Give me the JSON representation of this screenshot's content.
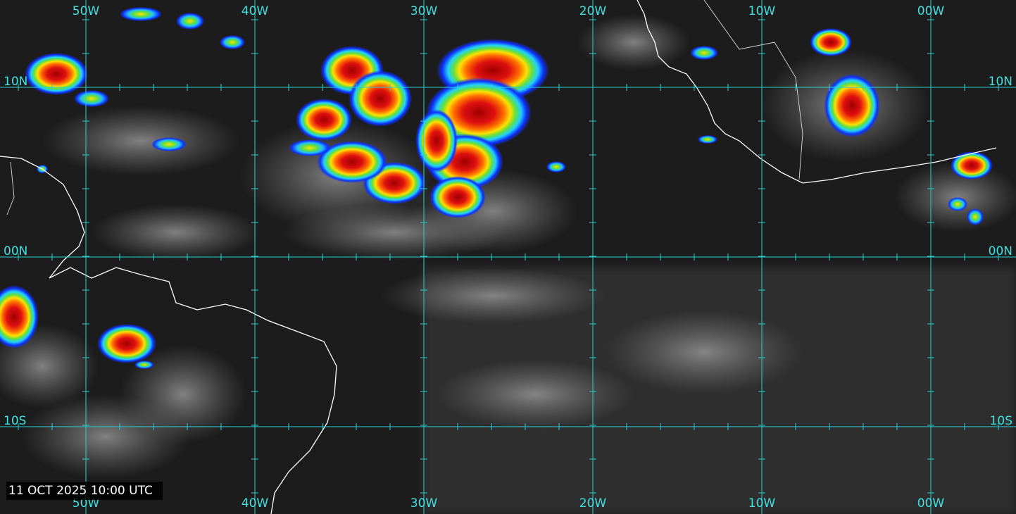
{
  "longitude_labels": [
    "50W",
    "40W",
    "30W",
    "20W",
    "10W",
    "00W"
  ],
  "latitude_labels": [
    "10N",
    "00N",
    "10S"
  ],
  "timestamp": "11 OCT 2025 10:00 UTC"
}
